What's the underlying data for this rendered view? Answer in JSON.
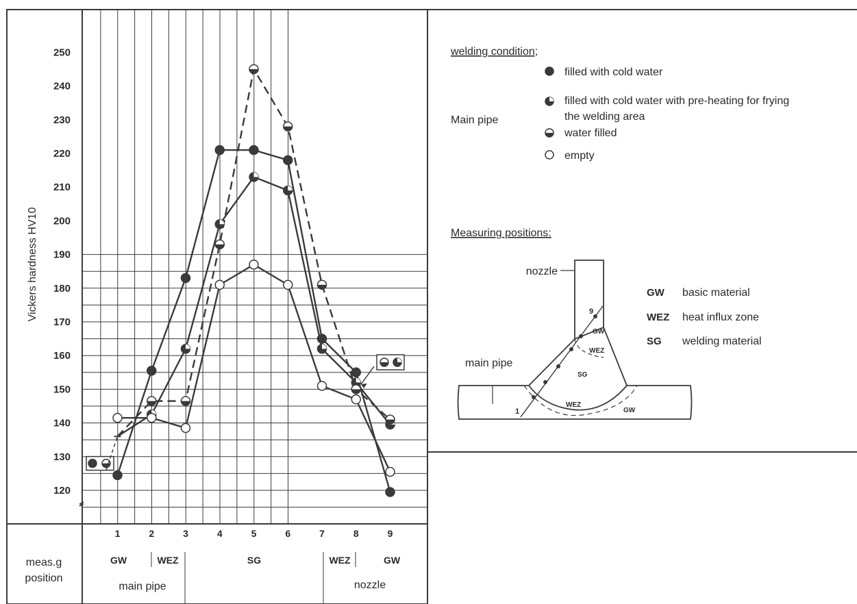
{
  "chart_data": {
    "type": "line",
    "ylabel": "Vickers hardness  HV10",
    "ylim": [
      115,
      255
    ],
    "y_ticks": [
      "120",
      "130",
      "140",
      "150",
      "160",
      "170",
      "180",
      "190",
      "200",
      "210",
      "220",
      "230",
      "240",
      "250"
    ],
    "x_ticks": [
      "1",
      "2",
      "3",
      "4",
      "5",
      "6",
      "7",
      "8",
      "9"
    ],
    "x": [
      1,
      2,
      3,
      4,
      5,
      6,
      7,
      8,
      9
    ],
    "grid": true,
    "series": [
      {
        "name": "filled with cold water",
        "marker": "filled",
        "style": "solid",
        "values": [
          124.5,
          155.5,
          183,
          221,
          221,
          218,
          165,
          155,
          119.5
        ]
      },
      {
        "name": "filled with cold water with pre-heating for frying the welding area",
        "marker": "three-quarter",
        "style": "solid",
        "values": [
          136,
          142.5,
          162,
          199,
          213,
          209,
          162,
          152,
          139.5
        ]
      },
      {
        "name": "water filled",
        "marker": "half",
        "style": "dashed",
        "values": [
          136,
          146.5,
          146.5,
          193,
          245,
          228,
          181,
          150,
          141
        ]
      },
      {
        "name": "empty",
        "marker": "open",
        "style": "solid",
        "values": [
          141.5,
          141.5,
          138.5,
          181,
          187,
          181,
          151,
          147,
          125.5
        ]
      }
    ],
    "annotations": {
      "left_box_value": 128,
      "right_box_value": 158
    },
    "bottom_table": {
      "row_label": [
        "meas.g",
        "position"
      ],
      "zones": [
        "GW",
        "WEZ",
        "SG",
        "WEZ",
        "GW"
      ],
      "pipes": [
        "main pipe",
        "nozzle"
      ]
    }
  },
  "legend": {
    "heading": "welding condition;",
    "group_label": "Main pipe",
    "items": [
      {
        "marker": "filled",
        "text": "filled with cold water"
      },
      {
        "marker": "three-quarter",
        "text": "filled with cold water with pre-heating for frying",
        "text2": "the welding area"
      },
      {
        "marker": "half",
        "text": "water filled"
      },
      {
        "marker": "open",
        "text": "empty"
      }
    ]
  },
  "measuring": {
    "heading": "Measuring positions:",
    "nozzle_label": "nozzle",
    "main_pipe_label": "main pipe",
    "diagram_labels": {
      "gw": "GW",
      "wez": "WEZ",
      "sg": "SG",
      "p1": "1",
      "p9": "9"
    },
    "abbreviations": [
      {
        "code": "GW",
        "meaning": "basic material"
      },
      {
        "code": "WEZ",
        "meaning": "heat influx zone"
      },
      {
        "code": "SG",
        "meaning": "welding material"
      }
    ]
  }
}
